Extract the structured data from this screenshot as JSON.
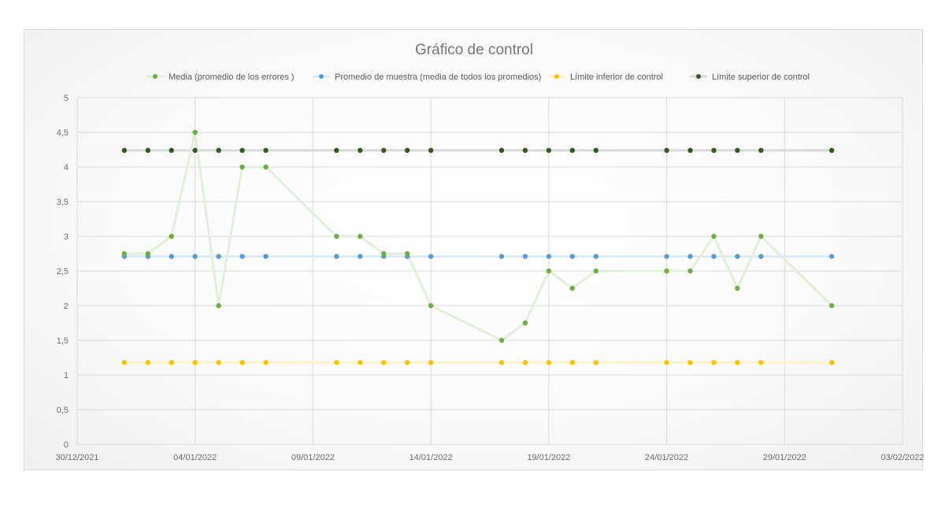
{
  "chart_data": {
    "type": "line",
    "title": "Gráfico de control",
    "xlabel": "",
    "ylabel": "",
    "ylim": [
      0,
      5
    ],
    "y_ticks": [
      "0",
      "0,5",
      "1",
      "1,5",
      "2",
      "2,5",
      "3",
      "3,5",
      "4",
      "4,5",
      "5"
    ],
    "x_ticks": [
      "30/12/2021",
      "04/01/2022",
      "09/01/2022",
      "14/01/2022",
      "19/01/2022",
      "24/01/2022",
      "29/01/2022",
      "03/02/2022"
    ],
    "xlim": [
      "30/12/2021",
      "03/02/2022"
    ],
    "grid": true,
    "legend_position": "top",
    "x": [
      "01/01/2022",
      "02/01/2022",
      "03/01/2022",
      "04/01/2022",
      "05/01/2022",
      "06/01/2022",
      "07/01/2022",
      "10/01/2022",
      "11/01/2022",
      "12/01/2022",
      "13/01/2022",
      "14/01/2022",
      "17/01/2022",
      "18/01/2022",
      "19/01/2022",
      "20/01/2022",
      "21/01/2022",
      "24/01/2022",
      "25/01/2022",
      "26/01/2022",
      "27/01/2022",
      "28/01/2022",
      "31/01/2022"
    ],
    "series": [
      {
        "name": "Media (promedio de los errores )",
        "color": "#70ad47",
        "line_color": "#e2efda",
        "values": [
          2.75,
          2.75,
          3,
          4.5,
          2,
          4,
          4,
          3,
          3,
          2.75,
          2.75,
          2,
          1.5,
          1.75,
          2.5,
          2.25,
          2.5,
          2.5,
          2.5,
          3,
          2.25,
          3,
          2
        ]
      },
      {
        "name": "Promedio de muestra (media de todos los promedios)",
        "color": "#5b9bd5",
        "line_color": "#ddebf7",
        "values": [
          2.71,
          2.71,
          2.71,
          2.71,
          2.71,
          2.71,
          2.71,
          2.71,
          2.71,
          2.71,
          2.71,
          2.71,
          2.71,
          2.71,
          2.71,
          2.71,
          2.71,
          2.71,
          2.71,
          2.71,
          2.71,
          2.71,
          2.71
        ]
      },
      {
        "name": "Límite inferior de control",
        "color": "#ffc000",
        "line_color": "#fff2cc",
        "values": [
          1.18,
          1.18,
          1.18,
          1.18,
          1.18,
          1.18,
          1.18,
          1.18,
          1.18,
          1.18,
          1.18,
          1.18,
          1.18,
          1.18,
          1.18,
          1.18,
          1.18,
          1.18,
          1.18,
          1.18,
          1.18,
          1.18,
          1.18
        ]
      },
      {
        "name": "Límite superior de control",
        "color": "#375623",
        "line_color": "#d9d9d9",
        "values": [
          4.24,
          4.24,
          4.24,
          4.24,
          4.24,
          4.24,
          4.24,
          4.24,
          4.24,
          4.24,
          4.24,
          4.24,
          4.24,
          4.24,
          4.24,
          4.24,
          4.24,
          4.24,
          4.24,
          4.24,
          4.24,
          4.24,
          4.24
        ]
      }
    ],
    "x_day_offsets": [
      2,
      3,
      4,
      5,
      6,
      7,
      8,
      11,
      12,
      13,
      14,
      15,
      18,
      19,
      20,
      21,
      22,
      25,
      26,
      27,
      28,
      29,
      32
    ],
    "x_range_days": 35
  },
  "colors": {
    "grid": "#d9d9d9",
    "title": "#757575",
    "tick": "#6e6e6e"
  }
}
